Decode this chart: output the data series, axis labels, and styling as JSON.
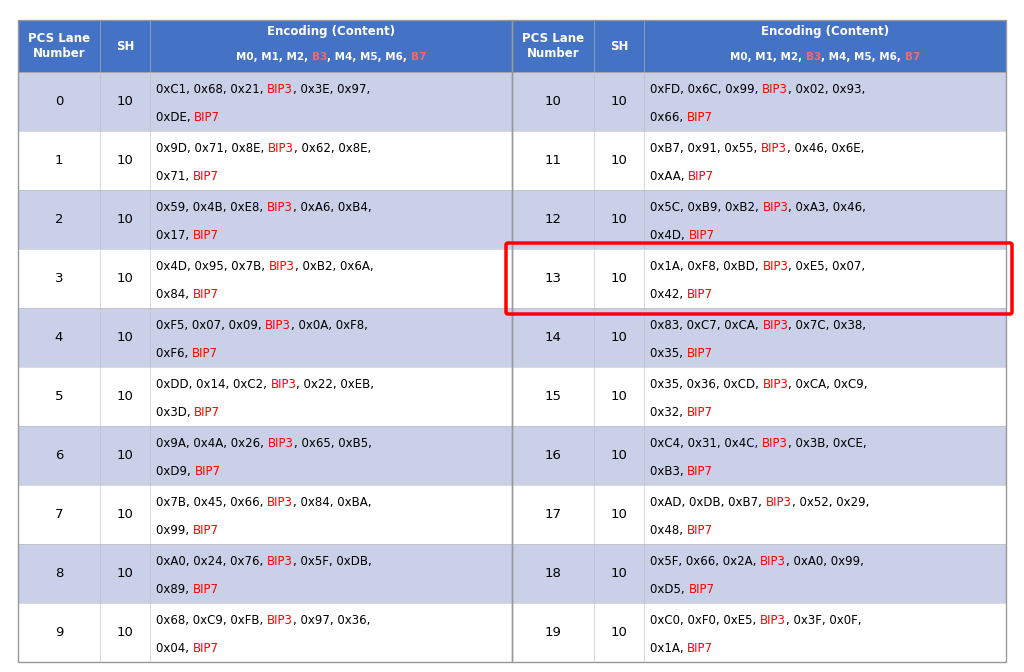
{
  "header_bg": "#4472C4",
  "header_text_color": "#FFFFFF",
  "row_bg_light": "#C9D0E8",
  "row_bg_white": "#FFFFFF",
  "red_color": "#FF0000",
  "highlight_border_color": "#FF0000",
  "highlight_lane": 13,
  "lanes": [
    {
      "lane": 0,
      "sh": 10,
      "line1": "0xC1, 0x68, 0x21, BIP3, 0x3E, 0x97,",
      "line2": "0xDE, BIP7"
    },
    {
      "lane": 1,
      "sh": 10,
      "line1": "0x9D, 0x71, 0x8E, BIP3, 0x62, 0x8E,",
      "line2": "0x71, BIP7"
    },
    {
      "lane": 2,
      "sh": 10,
      "line1": "0x59, 0x4B, 0xE8, BIP3, 0xA6, 0xB4,",
      "line2": "0x17, BIP7"
    },
    {
      "lane": 3,
      "sh": 10,
      "line1": "0x4D, 0x95, 0x7B, BIP3, 0xB2, 0x6A,",
      "line2": "0x84, BIP7"
    },
    {
      "lane": 4,
      "sh": 10,
      "line1": "0xF5, 0x07, 0x09, BIP3, 0x0A, 0xF8,",
      "line2": "0xF6, BIP7"
    },
    {
      "lane": 5,
      "sh": 10,
      "line1": "0xDD, 0x14, 0xC2, BIP3, 0x22, 0xEB,",
      "line2": "0x3D, BIP7"
    },
    {
      "lane": 6,
      "sh": 10,
      "line1": "0x9A, 0x4A, 0x26, BIP3, 0x65, 0xB5,",
      "line2": "0xD9, BIP7"
    },
    {
      "lane": 7,
      "sh": 10,
      "line1": "0x7B, 0x45, 0x66, BIP3, 0x84, 0xBA,",
      "line2": "0x99, BIP7"
    },
    {
      "lane": 8,
      "sh": 10,
      "line1": "0xA0, 0x24, 0x76, BIP3, 0x5F, 0xDB,",
      "line2": "0x89, BIP7"
    },
    {
      "lane": 9,
      "sh": 10,
      "line1": "0x68, 0xC9, 0xFB, BIP3, 0x97, 0x36,",
      "line2": "0x04, BIP7"
    },
    {
      "lane": 10,
      "sh": 10,
      "line1": "0xFD, 0x6C, 0x99, BIP3, 0x02, 0x93,",
      "line2": "0x66, BIP7"
    },
    {
      "lane": 11,
      "sh": 10,
      "line1": "0xB7, 0x91, 0x55, BIP3, 0x46, 0x6E,",
      "line2": "0xAA, BIP7"
    },
    {
      "lane": 12,
      "sh": 10,
      "line1": "0x5C, 0xB9, 0xB2, BIP3, 0xA3, 0x46,",
      "line2": "0x4D, BIP7"
    },
    {
      "lane": 13,
      "sh": 10,
      "line1": "0x1A, 0xF8, 0xBD, BIP3, 0xE5, 0x07,",
      "line2": "0x42, BIP7"
    },
    {
      "lane": 14,
      "sh": 10,
      "line1": "0x83, 0xC7, 0xCA, BIP3, 0x7C, 0x38,",
      "line2": "0x35, BIP7"
    },
    {
      "lane": 15,
      "sh": 10,
      "line1": "0x35, 0x36, 0xCD, BIP3, 0xCA, 0xC9,",
      "line2": "0x32, BIP7"
    },
    {
      "lane": 16,
      "sh": 10,
      "line1": "0xC4, 0x31, 0x4C, BIP3, 0x3B, 0xCE,",
      "line2": "0xB3, BIP7"
    },
    {
      "lane": 17,
      "sh": 10,
      "line1": "0xAD, 0xDB, 0xB7, BIP3, 0x52, 0x29,",
      "line2": "0x48, BIP7"
    },
    {
      "lane": 18,
      "sh": 10,
      "line1": "0x5F, 0x66, 0x2A, BIP3, 0xA0, 0x99,",
      "line2": "0xD5, BIP7"
    },
    {
      "lane": 19,
      "sh": 10,
      "line1": "0xC0, 0xF0, 0xE5, BIP3, 0x3F, 0x0F,",
      "line2": "0x1A, BIP7"
    }
  ]
}
